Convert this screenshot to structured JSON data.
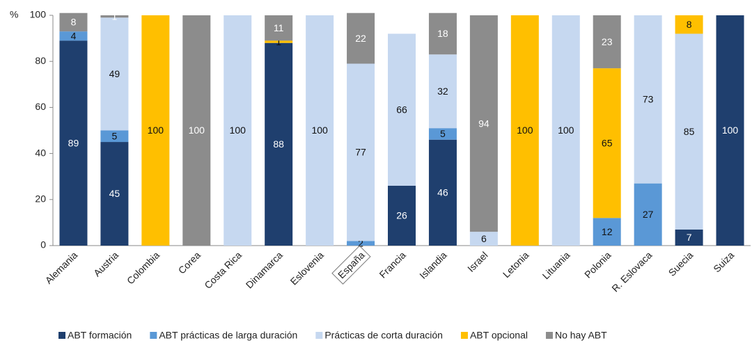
{
  "chart_data": {
    "type": "stacked_bar",
    "y_unit_label": "%",
    "categories": [
      "Alemania",
      "Austria",
      "Colombia",
      "Corea",
      "Costa Rica",
      "Dinamarca",
      "Eslovenia",
      "España",
      "Francia",
      "Islandia",
      "Israel",
      "Letonia",
      "Lituania",
      "Polonia",
      "R. Eslovaca",
      "Suecia",
      "Suiza"
    ],
    "series": [
      {
        "name": "ABT formación",
        "color": "#1f3f6e",
        "label_color": "#ffffff",
        "values": [
          89,
          45,
          null,
          null,
          null,
          88,
          null,
          null,
          26,
          46,
          null,
          null,
          null,
          null,
          null,
          7,
          100
        ]
      },
      {
        "name": "ABT prácticas de larga duración",
        "color": "#5a98d6",
        "label_color": "#111111",
        "values": [
          4,
          5,
          null,
          null,
          null,
          null,
          null,
          2,
          null,
          5,
          null,
          null,
          null,
          12,
          27,
          null,
          null
        ]
      },
      {
        "name": "Prácticas de corta duración",
        "color": "#c6d8f0",
        "label_color": "#111111",
        "values": [
          null,
          49,
          null,
          null,
          100,
          null,
          100,
          77,
          66,
          32,
          6,
          null,
          100,
          null,
          73,
          85,
          null
        ]
      },
      {
        "name": "ABT opcional",
        "color": "#ffbf00",
        "label_color": "#111111",
        "values": [
          null,
          null,
          100,
          null,
          null,
          1,
          null,
          null,
          null,
          null,
          null,
          100,
          null,
          65,
          null,
          8,
          null
        ]
      },
      {
        "name": "No hay ABT",
        "color": "#8c8c8c",
        "label_color": "#ffffff",
        "values": [
          8,
          1,
          null,
          100,
          null,
          11,
          null,
          22,
          null,
          18,
          94,
          null,
          null,
          23,
          null,
          null,
          null
        ]
      }
    ],
    "highlight_category": "España",
    "ylim": [
      0,
      100
    ],
    "yticks": [
      0,
      20,
      40,
      60,
      80,
      100
    ],
    "grid": false,
    "legend": "bottom"
  }
}
